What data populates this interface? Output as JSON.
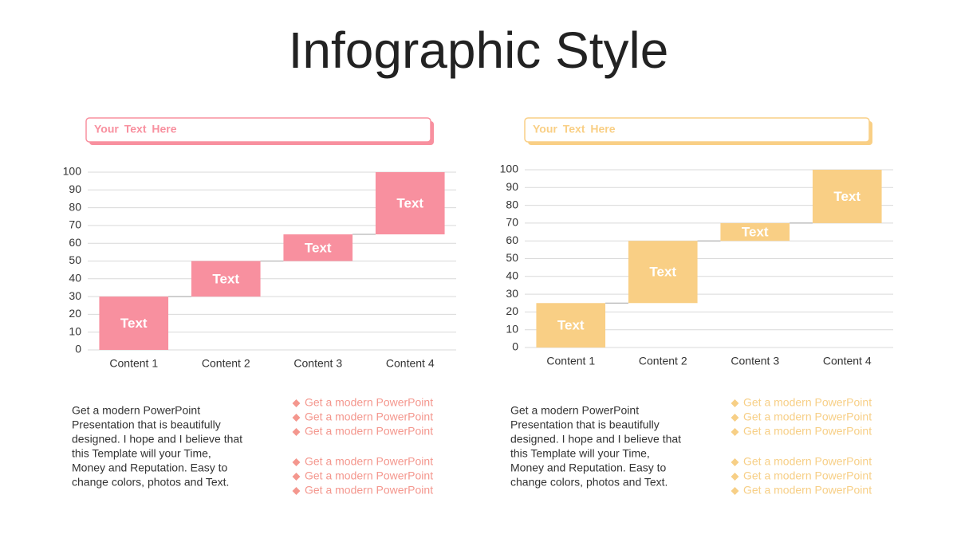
{
  "title": "Infographic Style",
  "panels": [
    {
      "header": "Your Text Here",
      "paragraph": [
        "Get a modern PowerPoint",
        "Presentation that is beautifully",
        "designed. I hope and I believe that",
        "this Template will your Time,",
        "Money and Reputation. Easy to",
        "change colors, photos and Text."
      ],
      "bullets": [
        [
          "Get a modern PowerPoint",
          "Get a modern PowerPoint",
          "Get a modern PowerPoint"
        ],
        [
          "Get a modern PowerPoint",
          "Get a modern PowerPoint",
          "Get a modern PowerPoint"
        ]
      ]
    },
    {
      "header": "Your Text Here",
      "paragraph": [
        "Get a modern PowerPoint",
        "Presentation that is beautifully",
        "designed. I hope and I believe that",
        "this Template will your Time,",
        "Money and Reputation. Easy to",
        "change colors, photos and Text."
      ],
      "bullets": [
        [
          "Get a modern PowerPoint",
          "Get a modern PowerPoint",
          "Get a modern PowerPoint"
        ],
        [
          "Get a modern PowerPoint",
          "Get a modern PowerPoint",
          "Get a modern PowerPoint"
        ]
      ]
    }
  ],
  "chart_data": [
    {
      "type": "waterfall",
      "categories": [
        "Content 1",
        "Content 2",
        "Content 3",
        "Content 4"
      ],
      "values": [
        30,
        20,
        15,
        35
      ],
      "value_labels": [
        "Text",
        "Text",
        "Text",
        "Text"
      ],
      "color": "#f8909f",
      "ylim": [
        0,
        100
      ],
      "yticks": [
        0,
        10,
        20,
        30,
        40,
        50,
        60,
        70,
        80,
        90,
        100
      ],
      "grid": true
    },
    {
      "type": "waterfall",
      "categories": [
        "Content 1",
        "Content 2",
        "Content 3",
        "Content 4"
      ],
      "values": [
        25,
        35,
        10,
        30
      ],
      "value_labels": [
        "Text",
        "Text",
        "Text",
        "Text"
      ],
      "color": "#f9cf85",
      "ylim": [
        0,
        100
      ],
      "yticks": [
        0,
        10,
        20,
        30,
        40,
        50,
        60,
        70,
        80,
        90,
        100
      ],
      "grid": true
    }
  ]
}
